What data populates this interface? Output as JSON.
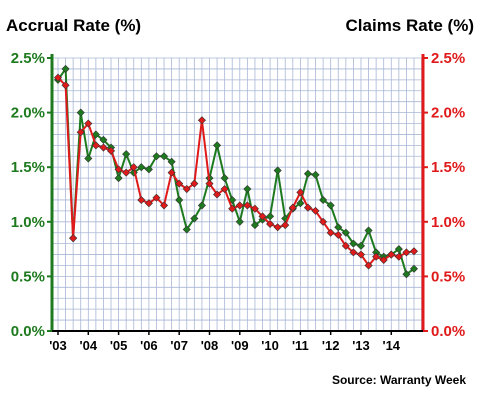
{
  "chart_data": {
    "type": "line",
    "title_left": "Accrual Rate (%)",
    "title_right": "Claims Rate (%)",
    "source": "Source: Warranty Week",
    "colors": {
      "accrual": "#1e7a1e",
      "claims": "#e01a1a",
      "grid": "#a9b6d6",
      "axis": "#000000"
    },
    "y_ticks": [
      "0.0%",
      "0.5%",
      "1.0%",
      "1.5%",
      "2.0%",
      "2.5%"
    ],
    "ylim": [
      0,
      2.5
    ],
    "x_labels": [
      "'03",
      "'04",
      "'05",
      "'06",
      "'07",
      "'08",
      "'09",
      "'10",
      "'11",
      "'12",
      "'13",
      "'14"
    ],
    "grid": true,
    "series": [
      {
        "name": "Accrual Rate (%)",
        "axis": "left",
        "values": [
          2.3,
          2.4,
          0.85,
          2.0,
          1.58,
          1.8,
          1.75,
          1.68,
          1.4,
          1.62,
          1.45,
          1.5,
          1.48,
          1.6,
          1.6,
          1.55,
          1.2,
          0.93,
          1.03,
          1.15,
          1.4,
          1.7,
          1.4,
          1.2,
          1.0,
          1.3,
          0.97,
          1.02,
          1.05,
          1.47,
          1.03,
          1.12,
          1.17,
          1.44,
          1.43,
          1.2,
          1.15,
          0.95,
          0.9,
          0.8,
          0.78,
          0.92,
          0.72,
          0.68,
          0.7,
          0.75,
          0.52,
          0.57
        ]
      },
      {
        "name": "Claims Rate (%)",
        "axis": "right",
        "values": [
          2.32,
          2.25,
          0.85,
          1.82,
          1.9,
          1.7,
          1.68,
          1.65,
          1.48,
          1.45,
          1.5,
          1.2,
          1.17,
          1.22,
          1.15,
          1.45,
          1.35,
          1.3,
          1.35,
          1.93,
          1.35,
          1.25,
          1.3,
          1.12,
          1.15,
          1.15,
          1.12,
          1.05,
          0.98,
          0.95,
          0.97,
          1.13,
          1.27,
          1.13,
          1.1,
          1.0,
          0.9,
          0.88,
          0.78,
          0.72,
          0.7,
          0.6,
          0.68,
          0.65,
          0.7,
          0.68,
          0.72,
          0.73
        ]
      }
    ]
  }
}
